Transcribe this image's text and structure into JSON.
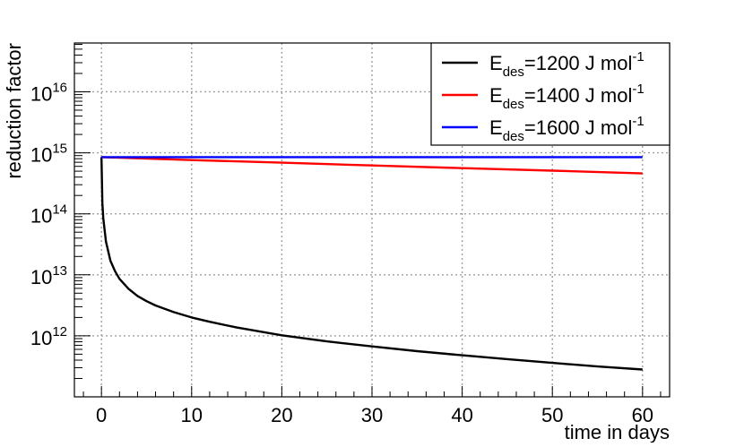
{
  "chart_data": {
    "type": "line",
    "title": "",
    "xlabel": "time in days",
    "ylabel": "reduction factor",
    "xlim": [
      -3,
      63
    ],
    "ylim_log10": [
      11.0,
      16.8
    ],
    "y_scale": "log",
    "grid": true,
    "grid_style": "dotted",
    "legend_position": "top-right",
    "x_ticks": [
      0,
      10,
      20,
      30,
      40,
      50,
      60
    ],
    "x_tick_labels": [
      "0",
      "10",
      "20",
      "30",
      "40",
      "50",
      "60"
    ],
    "y_ticks": [
      {
        "exp": 12,
        "base": "10",
        "sup": "12"
      },
      {
        "exp": 13,
        "base": "10",
        "sup": "13"
      },
      {
        "exp": 14,
        "base": "10",
        "sup": "14"
      },
      {
        "exp": 15,
        "base": "10",
        "sup": "15"
      },
      {
        "exp": 16,
        "base": "10",
        "sup": "16"
      }
    ],
    "series": [
      {
        "legend": {
          "pre": "E",
          "sub": "des",
          "mid": "=1200 J mol",
          "sup": "-1"
        },
        "color": "#000000",
        "x": [
          0,
          0.1,
          0.2,
          0.5,
          1,
          1.5,
          2,
          3,
          4,
          5,
          6,
          8,
          10,
          12,
          15,
          20,
          25,
          30,
          35,
          40,
          45,
          50,
          55,
          60
        ],
        "y": [
          850000000000000.0,
          150000000000000.0,
          85000000000000.0,
          35000000000000.0,
          17000000000000.0,
          11500000000000.0,
          8600000000000.0,
          5900000000000.0,
          4500000000000.0,
          3700000000000.0,
          3150000000000.0,
          2450000000000.0,
          2000000000000.0,
          1700000000000.0,
          1370000000000.0,
          1020000000000.0,
          810000000000.0,
          670000000000.0,
          560000000000.0,
          480000000000.0,
          415000000000.0,
          360000000000.0,
          315000000000.0,
          280000000000.0
        ]
      },
      {
        "legend": {
          "pre": "E",
          "sub": "des",
          "mid": "=1400 J mol",
          "sup": "-1"
        },
        "color": "#ff0000",
        "x": [
          0,
          10,
          20,
          30,
          40,
          50,
          60
        ],
        "y": [
          850000000000000.0,
          760000000000000.0,
          690000000000000.0,
          620000000000000.0,
          560000000000000.0,
          510000000000000.0,
          460000000000000.0
        ]
      },
      {
        "legend": {
          "pre": "E",
          "sub": "des",
          "mid": "=1600 J mol",
          "sup": "-1"
        },
        "color": "#0000ff",
        "x": [
          0,
          60
        ],
        "y": [
          850000000000000.0,
          850000000000000.0
        ]
      }
    ]
  }
}
